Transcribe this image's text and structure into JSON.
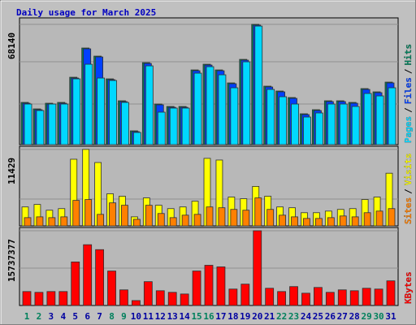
{
  "chart_data": {
    "type": "bar",
    "title": "Daily usage for March 2025",
    "categories": [
      "1",
      "2",
      "3",
      "4",
      "5",
      "6",
      "7",
      "8",
      "9",
      "10",
      "11",
      "12",
      "13",
      "14",
      "15",
      "16",
      "17",
      "18",
      "19",
      "20",
      "21",
      "22",
      "23",
      "24",
      "25",
      "26",
      "27",
      "28",
      "29",
      "30",
      "31"
    ],
    "category_colors": [
      "#00805c",
      "#00805c",
      "#0000a0",
      "#0000a0",
      "#0000a0",
      "#0000a0",
      "#0000a0",
      "#00805c",
      "#00805c",
      "#0000a0",
      "#0000a0",
      "#0000a0",
      "#0000a0",
      "#0000a0",
      "#00805c",
      "#00805c",
      "#0000a0",
      "#0000a0",
      "#0000a0",
      "#0000a0",
      "#0000a0",
      "#00805c",
      "#00805c",
      "#0000a0",
      "#0000a0",
      "#0000a0",
      "#0000a0",
      "#0000a0",
      "#00805c",
      "#00805c",
      "#0000a0"
    ],
    "legend_separator": "/",
    "panels": [
      {
        "ylim": [
          0,
          71800
        ],
        "yticks": [
          68140
        ],
        "series": [
          {
            "name": "Hits",
            "color": "#00805c",
            "values": [
              23920,
              20240,
              23460,
              23920,
              38180,
              54740,
              50140,
              37260,
              24840,
              7820,
              46460,
              23000,
              21620,
              21620,
              42320,
              45540,
              42320,
              34960,
              48300,
              68140,
              33120,
              30360,
              26680,
              17480,
              19780,
              24840,
              24840,
              23920,
              31740,
              29900,
              35420
            ]
          },
          {
            "name": "Files",
            "color": "#0040ff",
            "values": [
              23460,
              19780,
              23000,
              23460,
              37720,
              54280,
              49680,
              36800,
              24380,
              7360,
              46000,
              22540,
              21160,
              21160,
              41860,
              45080,
              41860,
              34500,
              47840,
              67680,
              32660,
              29900,
              26220,
              17020,
              19320,
              24380,
              24380,
              23460,
              31280,
              29440,
              34960
            ]
          },
          {
            "name": "Pages",
            "color": "#00d8ff",
            "values": [
              23000,
              19320,
              23000,
              23000,
              37260,
              45540,
              37720,
              36340,
              23920,
              6900,
              44620,
              18400,
              20700,
              20700,
              40480,
              44160,
              39560,
              32200,
              46920,
              67160,
              31280,
              27140,
              23000,
              15640,
              17940,
              23000,
              23000,
              21620,
              28980,
              27600,
              32200
            ]
          }
        ]
      },
      {
        "ylim": [
          0,
          11900
        ],
        "yticks": [
          11429
        ],
        "series": [
          {
            "name": "Visits",
            "color": "#ffff00",
            "values": [
              2830,
              3200,
              2340,
              2580,
              9960,
              11429,
              9470,
              4800,
              4430,
              1350,
              4180,
              3080,
              2580,
              2830,
              3690,
              10090,
              9840,
              4310,
              4060,
              5900,
              4430,
              2830,
              2710,
              1970,
              1970,
              2210,
              2460,
              2580,
              3940,
              4310,
              7870
            ]
          },
          {
            "name": "Sites",
            "color": "#ff8000",
            "values": [
              1230,
              1350,
              1230,
              1350,
              3810,
              3940,
              1720,
              3440,
              3080,
              980,
              3080,
              1850,
              1230,
              1600,
              1720,
              2830,
              2710,
              2460,
              2340,
              4180,
              2460,
              1600,
              1350,
              1110,
              1110,
              1230,
              1480,
              1350,
              1970,
              2210,
              2580
            ]
          }
        ]
      },
      {
        "ylim": [
          0,
          16420000
        ],
        "yticks": [
          15737377
        ],
        "series": [
          {
            "name": "KBytes",
            "color": "#ff0000",
            "values": [
              2940000,
              2770000,
              2940000,
              2940000,
              9170000,
              12800000,
              11760000,
              7260000,
              3290000,
              1040000,
              5020000,
              3110000,
              2770000,
              2420000,
              7260000,
              8470000,
              8130000,
              3460000,
              4500000,
              15737377,
              3630000,
              2940000,
              3980000,
              2590000,
              3800000,
              2770000,
              3290000,
              3110000,
              3630000,
              3460000,
              5190000
            ]
          }
        ]
      }
    ]
  }
}
